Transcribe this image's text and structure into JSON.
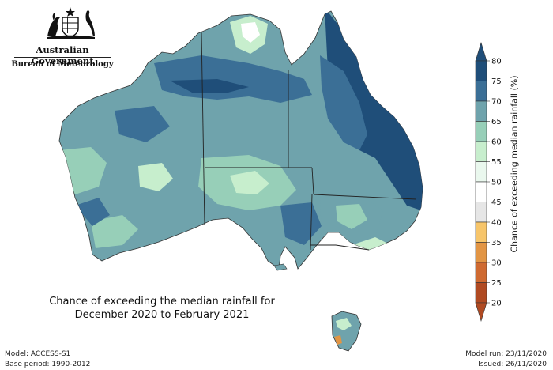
{
  "header": {
    "gov_name": "Australian Government",
    "bureau_name": "Bureau of Meteorology"
  },
  "map": {
    "title_line1": "Chance of exceeding the median rainfall for",
    "title_line2": "December 2020 to February 2021"
  },
  "legend": {
    "label": "Chance of exceeding median rainfall (%)",
    "ticks": [
      "80",
      "75",
      "70",
      "65",
      "60",
      "55",
      "50",
      "45",
      "40",
      "35",
      "30",
      "25",
      "20"
    ],
    "colors": [
      "#1f4e79",
      "#3b6f96",
      "#6fa3ac",
      "#97cfb8",
      "#c7eecd",
      "#eaf8ee",
      "#ffffff",
      "#e6e6e6",
      "#f7c56a",
      "#e29544",
      "#cf6a31",
      "#b04a22"
    ]
  },
  "footer": {
    "model": "Model: ACCESS-S1",
    "base_period": "Base period: 1990-2012",
    "model_run": "Model run: 23/11/2020",
    "issued": "Issued: 26/11/2020"
  }
}
